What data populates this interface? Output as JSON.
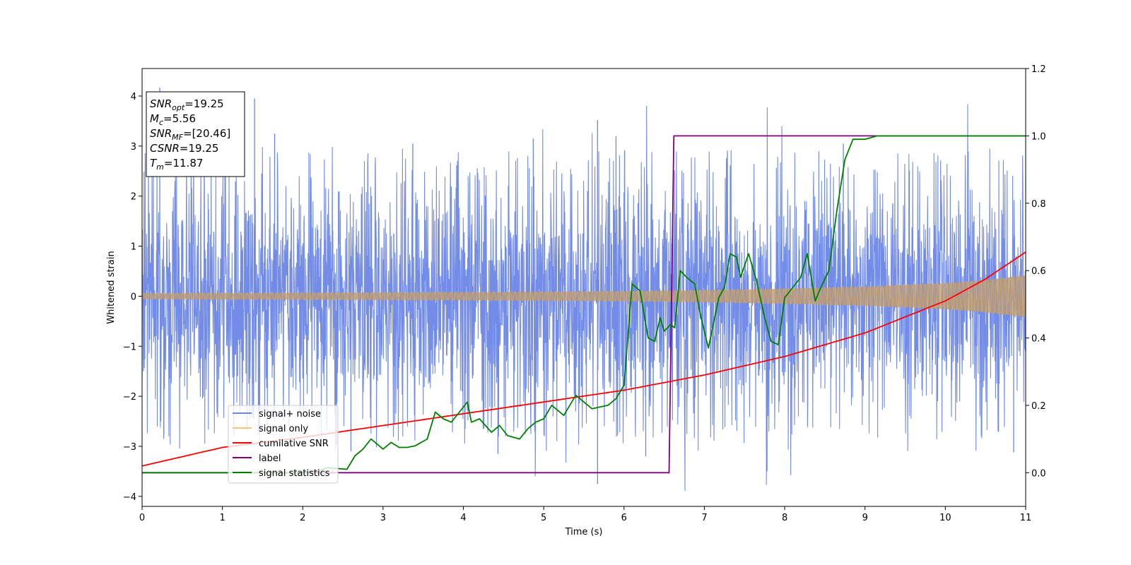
{
  "chart_data": {
    "type": "line",
    "xlabel": "Time (s)",
    "ylabel": "Whitened strain",
    "xlim": [
      0,
      11
    ],
    "ylim": [
      -4.2,
      4.55
    ],
    "y2lim": [
      -0.1,
      1.2
    ],
    "xticks": [
      0,
      1,
      2,
      3,
      4,
      5,
      6,
      7,
      8,
      9,
      10,
      11
    ],
    "yticks": [
      -4,
      -3,
      -2,
      -1,
      0,
      1,
      2,
      3,
      4
    ],
    "y2ticks": [
      0.0,
      0.2,
      0.4,
      0.6,
      0.8,
      1.0,
      1.2
    ],
    "xtick_labels": [
      "0",
      "1",
      "2",
      "3",
      "4",
      "5",
      "6",
      "7",
      "8",
      "9",
      "10",
      "11"
    ],
    "ytick_labels": [
      "−4",
      "−3",
      "−2",
      "−1",
      "0",
      "1",
      "2",
      "3",
      "4"
    ],
    "y2tick_labels": [
      "0.0",
      "0.2",
      "0.4",
      "0.6",
      "0.8",
      "1.0",
      "1.2"
    ],
    "legend_position": "lower-left",
    "colors": {
      "noise": "#6b86e6",
      "signal": "#f5c870",
      "cumsnr": "#ff0000",
      "label": "#800080",
      "stats": "#008000"
    },
    "series": [
      {
        "name": "signal+ noise",
        "axis": "left",
        "style": "noise band",
        "envelope": {
          "x": [
            0,
            0.5,
            1,
            1.5,
            2,
            2.5,
            3,
            3.5,
            4,
            4.5,
            5,
            5.5,
            6,
            6.5,
            7,
            7.5,
            8,
            8.5,
            9,
            9.5,
            10,
            10.5,
            11
          ],
          "upper": [
            2.3,
            2.4,
            2.3,
            2.4,
            2.3,
            2.3,
            2.4,
            2.3,
            2.3,
            2.3,
            2.3,
            2.4,
            2.4,
            2.3,
            2.3,
            2.4,
            2.4,
            2.3,
            2.4,
            2.3,
            2.4,
            2.3,
            2.4
          ],
          "lower": [
            -2.3,
            -2.3,
            -2.4,
            -2.3,
            -2.3,
            -2.4,
            -2.3,
            -2.3,
            -2.4,
            -2.3,
            -2.3,
            -2.3,
            -2.4,
            -2.3,
            -2.3,
            -2.4,
            -2.3,
            -2.3,
            -2.4,
            -2.3,
            -2.3,
            -2.3,
            -2.3
          ]
        },
        "peaks": [
          {
            "x": 0.22,
            "y": 4.17
          },
          {
            "x": 1.4,
            "y": 3.95
          },
          {
            "x": 1.65,
            "y": 3.25
          },
          {
            "x": 3.37,
            "y": 3.05
          },
          {
            "x": 4.87,
            "y": 3.15
          },
          {
            "x": 5.67,
            "y": 3.52
          },
          {
            "x": 5.9,
            "y": 3.2
          },
          {
            "x": 8.73,
            "y": 3.05
          },
          {
            "x": 5.67,
            "y": -3.75
          },
          {
            "x": 7.78,
            "y": -3.5
          },
          {
            "x": 0.27,
            "y": -2.85
          },
          {
            "x": 2.6,
            "y": -3.1
          },
          {
            "x": 4.43,
            "y": -3.15
          },
          {
            "x": 6.27,
            "y": -3.2
          },
          {
            "x": 10.85,
            "y": -3.12
          }
        ]
      },
      {
        "name": "signal only",
        "axis": "left",
        "style": "chirp envelope",
        "x": [
          0,
          1,
          2,
          3,
          4,
          5,
          6,
          7,
          8,
          9,
          10,
          10.5,
          11
        ],
        "amplitude": [
          0.06,
          0.065,
          0.07,
          0.075,
          0.08,
          0.09,
          0.1,
          0.12,
          0.15,
          0.19,
          0.26,
          0.32,
          0.42
        ]
      },
      {
        "name": "cumilative SNR",
        "axis": "right",
        "x": [
          0,
          1,
          2,
          3,
          4,
          5,
          6,
          7,
          8,
          9,
          10,
          10.5,
          11
        ],
        "y": [
          0.02,
          0.075,
          0.105,
          0.14,
          0.175,
          0.21,
          0.245,
          0.29,
          0.345,
          0.415,
          0.51,
          0.575,
          0.655
        ]
      },
      {
        "name": "label",
        "axis": "right",
        "x": [
          0,
          6.56,
          6.62,
          11
        ],
        "y": [
          0,
          0,
          1,
          1
        ]
      },
      {
        "name": "signal statistics",
        "axis": "right",
        "x": [
          0,
          2.0,
          2.2,
          2.3,
          2.55,
          2.65,
          2.75,
          2.85,
          3.0,
          3.1,
          3.2,
          3.3,
          3.4,
          3.55,
          3.65,
          3.75,
          3.85,
          3.95,
          4.05,
          4.1,
          4.2,
          4.35,
          4.45,
          4.55,
          4.7,
          4.8,
          4.9,
          5.0,
          5.1,
          5.25,
          5.4,
          5.5,
          5.6,
          5.7,
          5.8,
          5.9,
          6.0,
          6.1,
          6.2,
          6.3,
          6.38,
          6.45,
          6.5,
          6.58,
          6.63,
          6.7,
          6.78,
          6.88,
          6.95,
          7.05,
          7.18,
          7.25,
          7.32,
          7.4,
          7.45,
          7.55,
          7.65,
          7.75,
          7.83,
          7.92,
          8.0,
          8.1,
          8.2,
          8.28,
          8.38,
          8.45,
          8.55,
          8.65,
          8.75,
          8.85,
          9.0,
          9.15,
          9.3,
          9.55,
          9.75,
          10.0,
          10.5,
          11
        ],
        "y": [
          0,
          0,
          0.005,
          0.015,
          0.01,
          0.05,
          0.07,
          0.1,
          0.07,
          0.09,
          0.075,
          0.075,
          0.08,
          0.1,
          0.18,
          0.16,
          0.15,
          0.18,
          0.21,
          0.15,
          0.16,
          0.12,
          0.14,
          0.11,
          0.1,
          0.13,
          0.15,
          0.16,
          0.2,
          0.17,
          0.23,
          0.21,
          0.19,
          0.195,
          0.2,
          0.22,
          0.26,
          0.56,
          0.54,
          0.4,
          0.39,
          0.46,
          0.42,
          0.44,
          0.43,
          0.6,
          0.58,
          0.56,
          0.47,
          0.37,
          0.52,
          0.55,
          0.65,
          0.64,
          0.58,
          0.65,
          0.57,
          0.46,
          0.39,
          0.38,
          0.52,
          0.55,
          0.58,
          0.65,
          0.51,
          0.55,
          0.6,
          0.78,
          0.93,
          0.99,
          0.99,
          1.0,
          1.0,
          1.0,
          1.0,
          1.0,
          1.0,
          1.0
        ]
      }
    ],
    "annotation_box": {
      "lines": [
        {
          "var": "SNR",
          "sub": "opt",
          "value": "=19.25"
        },
        {
          "var": "M",
          "sub": "c",
          "value": "=5.56"
        },
        {
          "var": "SNR",
          "sub": "MF",
          "value": "=[20.46]"
        },
        {
          "var": "CSNR",
          "sub": "",
          "value": "=19.25"
        },
        {
          "var": "T",
          "sub": "m",
          "value": "=11.87"
        }
      ]
    }
  }
}
